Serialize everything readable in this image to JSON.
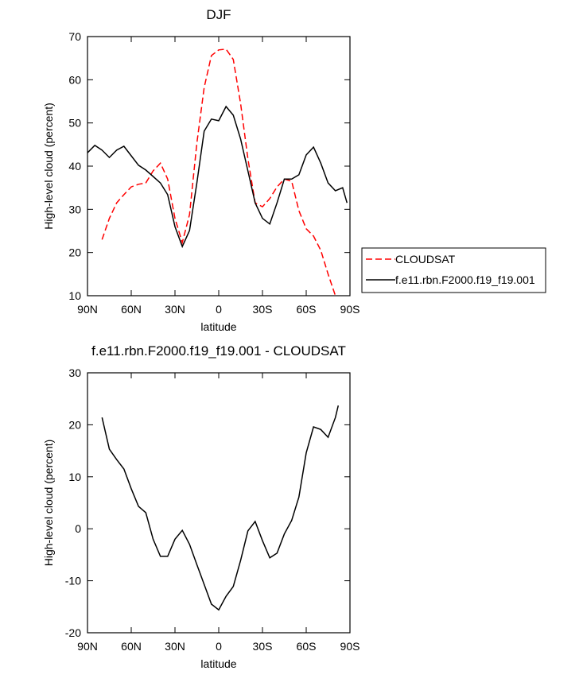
{
  "chart_data": [
    {
      "type": "line",
      "title": "DJF",
      "x_label": "latitude",
      "y_label": "High-level cloud (percent)",
      "x": [
        90,
        85,
        80,
        75,
        70,
        65,
        60,
        55,
        50,
        45,
        40,
        35,
        30,
        25,
        20,
        15,
        10,
        5,
        0,
        -5,
        -10,
        -15,
        -20,
        -25,
        -30,
        -35,
        -40,
        -45,
        -50,
        -55,
        -60,
        -65,
        -70,
        -75,
        -80,
        -85,
        -88
      ],
      "series": [
        {
          "name": "CLOUDSAT",
          "color": "#ff0000",
          "line_style": "dashed",
          "values": [
            null,
            null,
            23,
            27.9,
            31.5,
            33.4,
            35.2,
            35.8,
            36.1,
            38.9,
            40.7,
            37,
            27.9,
            22.3,
            28.8,
            45.3,
            58.2,
            65.6,
            66.9,
            67.1,
            64.7,
            54.5,
            41.7,
            31.5,
            30.6,
            32.5,
            35.2,
            37,
            36.5,
            29.7,
            25.5,
            23.8,
            20.5,
            15,
            10,
            null,
            null
          ]
        },
        {
          "name": "f.e11.rbn.F2000.f19_f19.001",
          "color": "#000000",
          "line_style": "solid",
          "values": [
            43.1,
            44.8,
            43.7,
            42,
            43.7,
            44.6,
            42.4,
            40.2,
            39.1,
            37.6,
            36.1,
            33.4,
            26,
            21.4,
            25.1,
            36.1,
            48.1,
            50.9,
            50.5,
            53.8,
            51.8,
            46.3,
            38.9,
            31.5,
            27.9,
            26.6,
            31.5,
            37,
            37,
            38,
            42.6,
            44.4,
            40.7,
            36.1,
            34.3,
            35,
            31.5
          ]
        }
      ],
      "xlim": [
        90,
        -90
      ],
      "xticks": [
        {
          "value": 90,
          "label": "90N"
        },
        {
          "value": 60,
          "label": "60N"
        },
        {
          "value": 30,
          "label": "30N"
        },
        0,
        {
          "value": -30,
          "label": "30S"
        },
        {
          "value": -60,
          "label": "60S"
        },
        {
          "value": -90,
          "label": "90S"
        }
      ],
      "ylim": [
        10,
        70
      ],
      "yticks": [
        10,
        20,
        30,
        40,
        50,
        60,
        70
      ],
      "legend": "right"
    },
    {
      "type": "line",
      "title": "f.e11.rbn.F2000.f19_f19.001 - CLOUDSAT",
      "x_label": "latitude",
      "y_label": "High-level cloud (percent)",
      "x": [
        80,
        75,
        70,
        65,
        60,
        55,
        50,
        45,
        40,
        35,
        30,
        25,
        20,
        15,
        10,
        5,
        0,
        -5,
        -10,
        -15,
        -20,
        -25,
        -30,
        -35,
        -40,
        -45,
        -50,
        -55,
        -60,
        -65,
        -70,
        -75,
        -80,
        -82
      ],
      "series": [
        {
          "color": "#000000",
          "line_style": "solid",
          "values": [
            21.4,
            15.3,
            13.3,
            11.5,
            7.7,
            4.3,
            3.1,
            -2,
            -5.3,
            -5.3,
            -2,
            -0.3,
            -3,
            -6.9,
            -10.7,
            -14.5,
            -15.6,
            -13,
            -11.1,
            -6.1,
            -0.4,
            1.4,
            -2.3,
            -5.6,
            -4.7,
            -1,
            1.6,
            6.1,
            14.6,
            19.6,
            19.1,
            17.6,
            21.4,
            23.7
          ]
        }
      ],
      "xlim": [
        90,
        -90
      ],
      "xticks": [
        {
          "value": 90,
          "label": "90N"
        },
        {
          "value": 60,
          "label": "60N"
        },
        {
          "value": 30,
          "label": "30N"
        },
        0,
        {
          "value": -30,
          "label": "30S"
        },
        {
          "value": -60,
          "label": "60S"
        },
        {
          "value": -90,
          "label": "90S"
        }
      ],
      "ylim": [
        -20,
        30
      ],
      "yticks": [
        -20,
        -10,
        0,
        10,
        20,
        30
      ]
    }
  ]
}
